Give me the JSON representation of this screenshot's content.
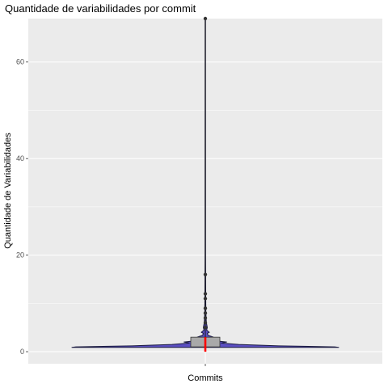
{
  "chart_data": {
    "type": "violin",
    "title": "Quantidade de variabilidades por commit",
    "xlabel": "Commits",
    "ylabel": "Quantidade de Variabilidades",
    "ylim": [
      -2.5,
      69
    ],
    "y_ticks": [
      0,
      20,
      40,
      60
    ],
    "y_tick_labels": [
      "0",
      "20",
      "40",
      "60"
    ],
    "x_ticks": [
      ""
    ],
    "grid": true,
    "colors": {
      "panel": "#ebebeb",
      "grid": "#ffffff",
      "violin_fill": "#5b4fc2",
      "violin_outline": "#1a1a40",
      "box_fill": "#a9a9a9",
      "median": "#ff0000",
      "points": "#333333",
      "whisker": "#1a1a1a"
    },
    "box": {
      "q1": 1,
      "median": 2,
      "q3": 3,
      "whisker_low": 0,
      "whisker_high": 69
    },
    "outliers": [
      5,
      6,
      7,
      8,
      9,
      11,
      12,
      16,
      69
    ],
    "violin_profile": [
      {
        "y": 0.9,
        "w": 1.0
      },
      {
        "y": 1.0,
        "w": 0.97
      },
      {
        "y": 1.2,
        "w": 0.55
      },
      {
        "y": 1.5,
        "w": 0.25
      },
      {
        "y": 1.8,
        "w": 0.12
      },
      {
        "y": 2.0,
        "w": 0.16
      },
      {
        "y": 2.3,
        "w": 0.06
      },
      {
        "y": 2.7,
        "w": 0.035
      },
      {
        "y": 3.0,
        "w": 0.06
      },
      {
        "y": 3.4,
        "w": 0.02
      },
      {
        "y": 3.8,
        "w": 0.015
      },
      {
        "y": 4.0,
        "w": 0.03
      },
      {
        "y": 4.5,
        "w": 0.01
      },
      {
        "y": 5.0,
        "w": 0.015
      },
      {
        "y": 6.0,
        "w": 0.008
      },
      {
        "y": 8.0,
        "w": 0.004
      },
      {
        "y": 12.0,
        "w": 0.003
      },
      {
        "y": 20.0,
        "w": 0.002
      },
      {
        "y": 69.0,
        "w": 0.0015
      }
    ]
  }
}
